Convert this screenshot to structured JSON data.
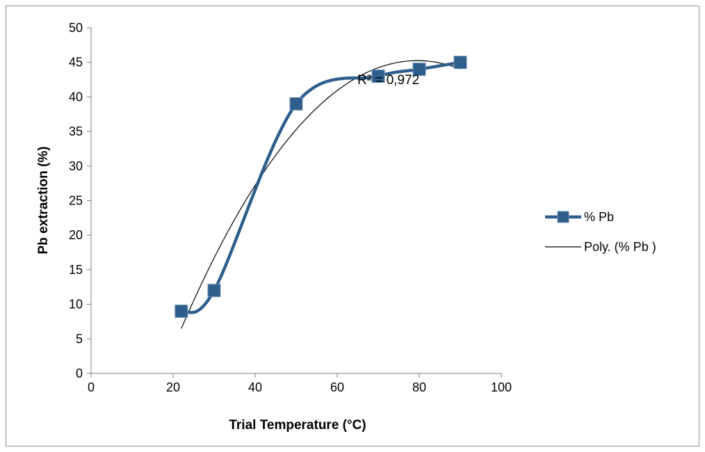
{
  "chart_data": {
    "type": "scatter",
    "title": "",
    "xlabel": "Trial Temperature (°C)",
    "ylabel": "Pb extraction (%)",
    "xlim": [
      0,
      100
    ],
    "ylim": [
      0,
      50
    ],
    "xticks": [
      0,
      20,
      40,
      60,
      80,
      100
    ],
    "yticks": [
      0,
      5,
      10,
      15,
      20,
      25,
      30,
      35,
      40,
      45,
      50
    ],
    "grid": false,
    "legend_position": "right",
    "series": [
      {
        "name": "% Pb",
        "style": "smoothed line with square markers",
        "color": "#2e5e8c",
        "x": [
          22,
          30,
          50,
          70,
          80,
          90
        ],
        "y": [
          9,
          12,
          39,
          43,
          44,
          45
        ]
      },
      {
        "name": "Poly. (% Pb )",
        "style": "thin black polynomial trendline",
        "color": "#000000",
        "x_range": [
          22,
          90
        ]
      }
    ],
    "annotations": [
      {
        "text": "R² = 0,972"
      }
    ]
  }
}
